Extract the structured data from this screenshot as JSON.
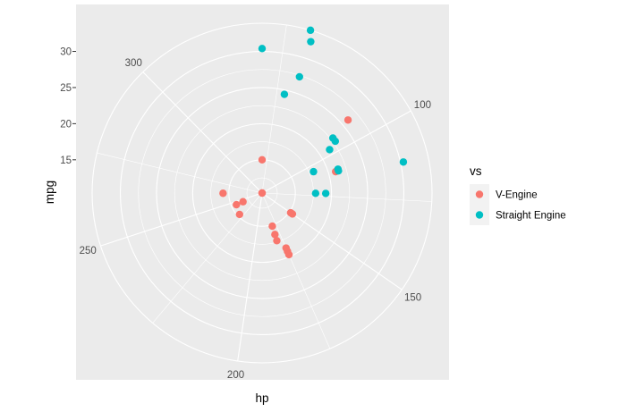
{
  "chart_data": {
    "type": "scatter",
    "coord": "polar",
    "xlabel": "hp",
    "ylabel": "mpg",
    "x_ticks": [
      100,
      150,
      200,
      250,
      300
    ],
    "y_ticks": [
      15,
      20,
      25,
      30
    ],
    "xlim": [
      52,
      335
    ],
    "ylim": [
      10.4,
      33.9
    ],
    "grid": true,
    "legend": {
      "title": "vs",
      "position": "right",
      "entries": [
        {
          "label": "V-Engine",
          "color": "#F8766D"
        },
        {
          "label": "Straight Engine",
          "color": "#00BFC4"
        }
      ]
    },
    "series": [
      {
        "name": "V-Engine",
        "color": "#F8766D",
        "points": [
          {
            "x": 110,
            "y": 21.0
          },
          {
            "x": 110,
            "y": 21.0
          },
          {
            "x": 175,
            "y": 18.7
          },
          {
            "x": 245,
            "y": 14.3
          },
          {
            "x": 180,
            "y": 16.4
          },
          {
            "x": 180,
            "y": 17.3
          },
          {
            "x": 180,
            "y": 15.2
          },
          {
            "x": 205,
            "y": 10.4
          },
          {
            "x": 215,
            "y": 10.4
          },
          {
            "x": 230,
            "y": 14.7
          },
          {
            "x": 150,
            "y": 15.5
          },
          {
            "x": 150,
            "y": 15.2
          },
          {
            "x": 245,
            "y": 13.3
          },
          {
            "x": 175,
            "y": 19.2
          },
          {
            "x": 264,
            "y": 15.8
          },
          {
            "x": 335,
            "y": 15.0
          },
          {
            "x": 91,
            "y": 26.0
          },
          {
            "x": 175,
            "y": 19.7
          }
        ]
      },
      {
        "name": "Straight Engine",
        "color": "#00BFC4",
        "points": [
          {
            "x": 93,
            "y": 22.8
          },
          {
            "x": 110,
            "y": 21.4
          },
          {
            "x": 105,
            "y": 18.1
          },
          {
            "x": 62,
            "y": 24.4
          },
          {
            "x": 95,
            "y": 22.8
          },
          {
            "x": 123,
            "y": 19.2
          },
          {
            "x": 123,
            "y": 17.8
          },
          {
            "x": 66,
            "y": 32.4
          },
          {
            "x": 52,
            "y": 30.4
          },
          {
            "x": 65,
            "y": 33.9
          },
          {
            "x": 97,
            "y": 21.5
          },
          {
            "x": 66,
            "y": 27.3
          },
          {
            "x": 113,
            "y": 30.4
          },
          {
            "x": 109,
            "y": 21.4
          }
        ]
      }
    ]
  }
}
